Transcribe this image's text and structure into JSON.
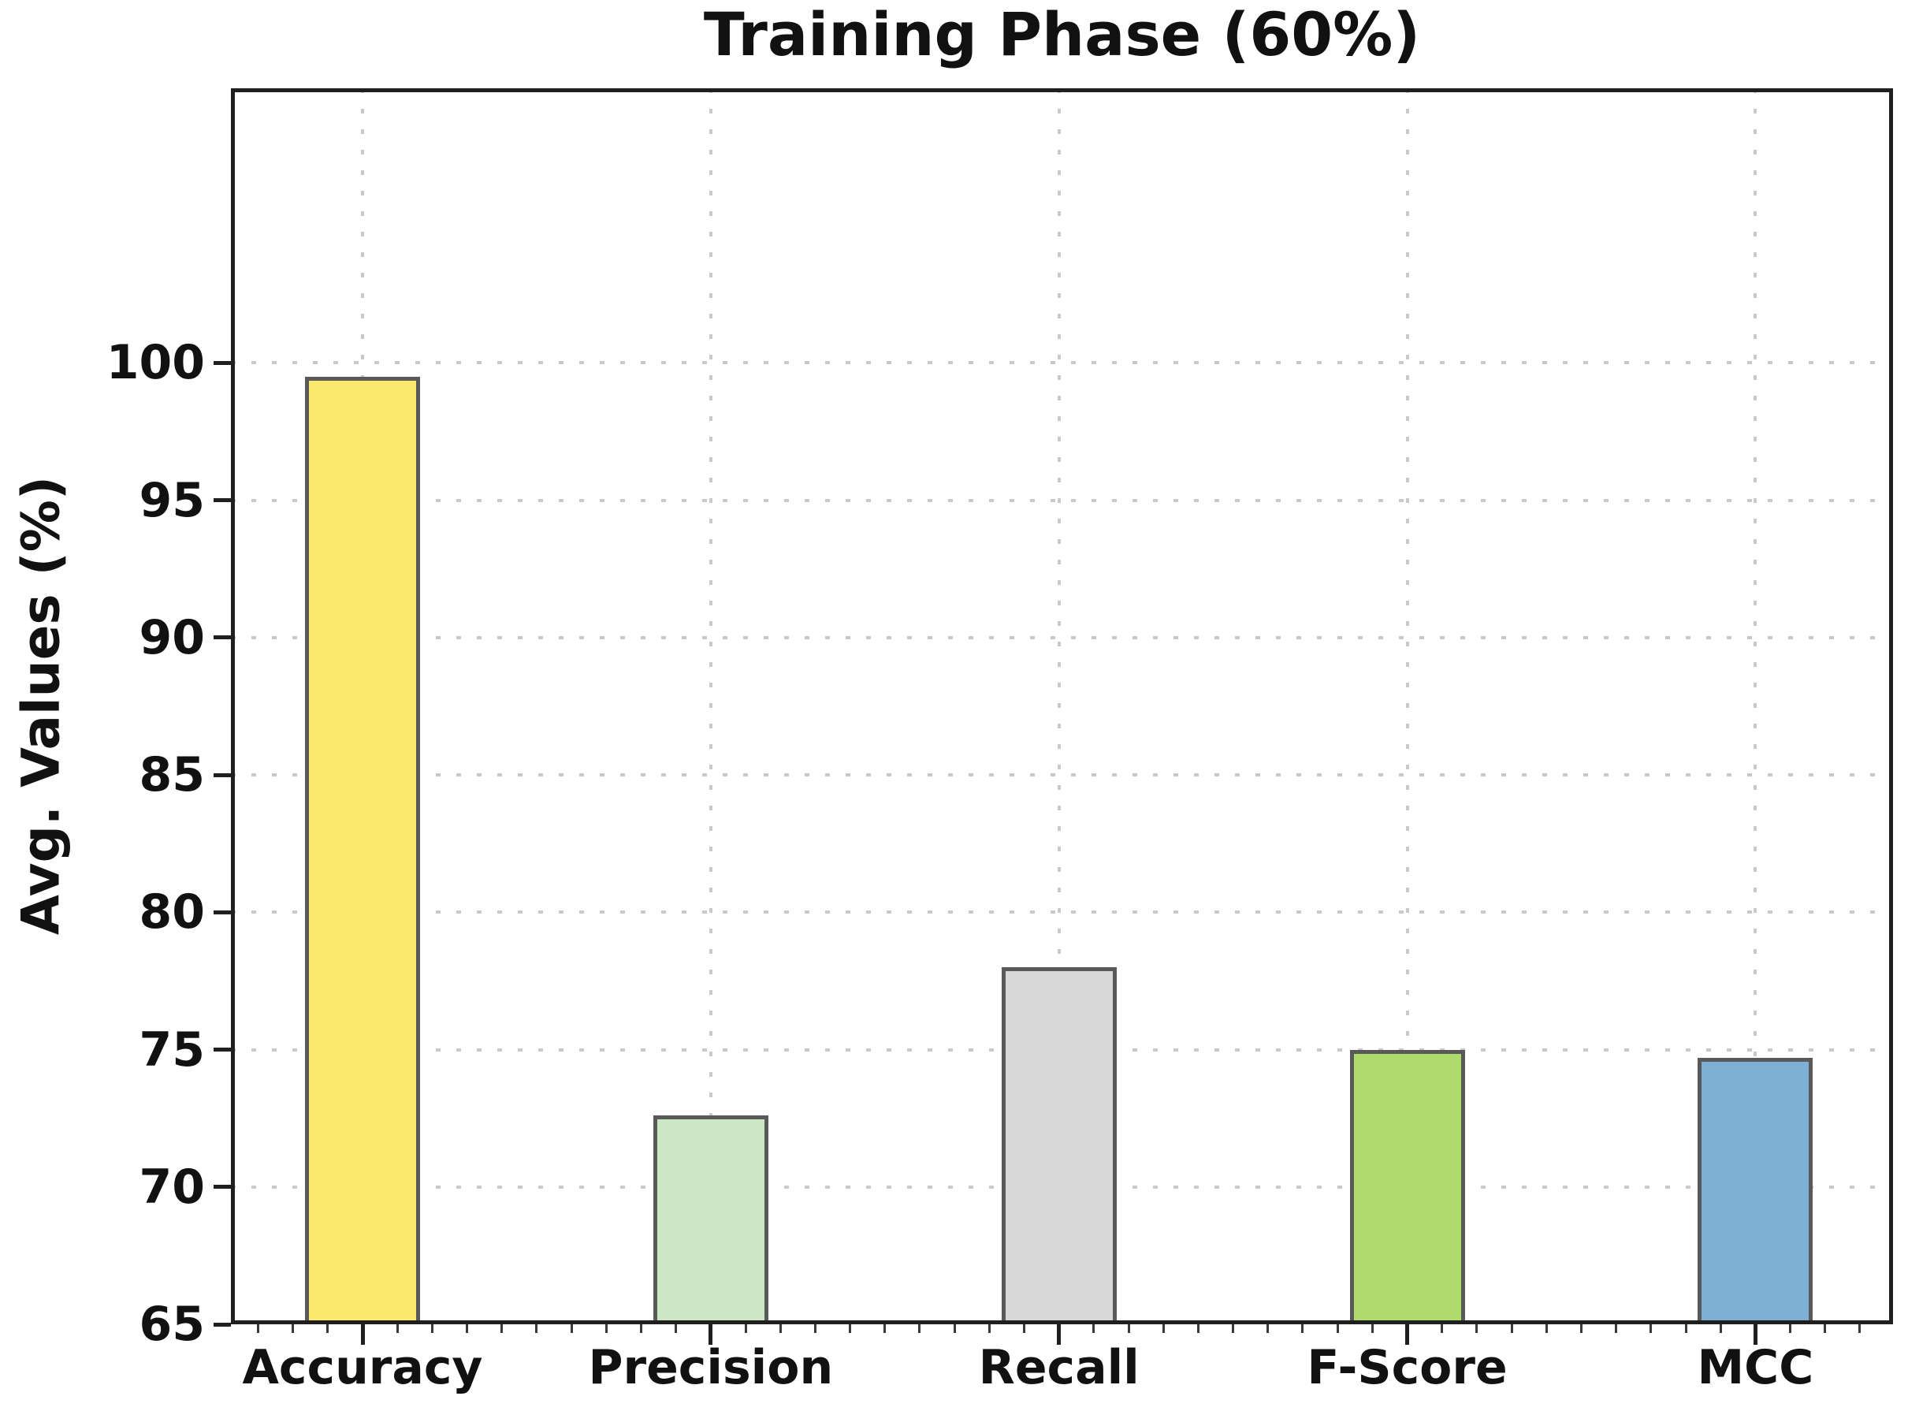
{
  "figure": {
    "kind": "static matplotlib-style figure",
    "background": "#ffffff"
  },
  "chart_data": {
    "type": "bar",
    "title": "Training Phase (60%)",
    "xlabel": "",
    "ylabel": "Avg. Values (%)",
    "categories": [
      "Accuracy",
      "Precision",
      "Recall",
      "F-Score",
      "MCC"
    ],
    "values": [
      99.5,
      72.6,
      78.0,
      75.0,
      74.7
    ],
    "bar_colors": [
      "#FBE96D",
      "#CBE7C3",
      "#D8D8D8",
      "#AFDB6D",
      "#7EAFD5"
    ],
    "bar_edge_color": "#595959",
    "yticks": [
      65,
      70,
      75,
      80,
      85,
      90,
      95,
      100
    ],
    "ylim": [
      65,
      110
    ],
    "grid": "dotted gridlines on both axes at major ticks",
    "gridline_color": "#c9c9c9",
    "x_minor_ticks": true,
    "legend": "none",
    "text_color": "#111111",
    "frame_color": "#1f1f1f"
  }
}
